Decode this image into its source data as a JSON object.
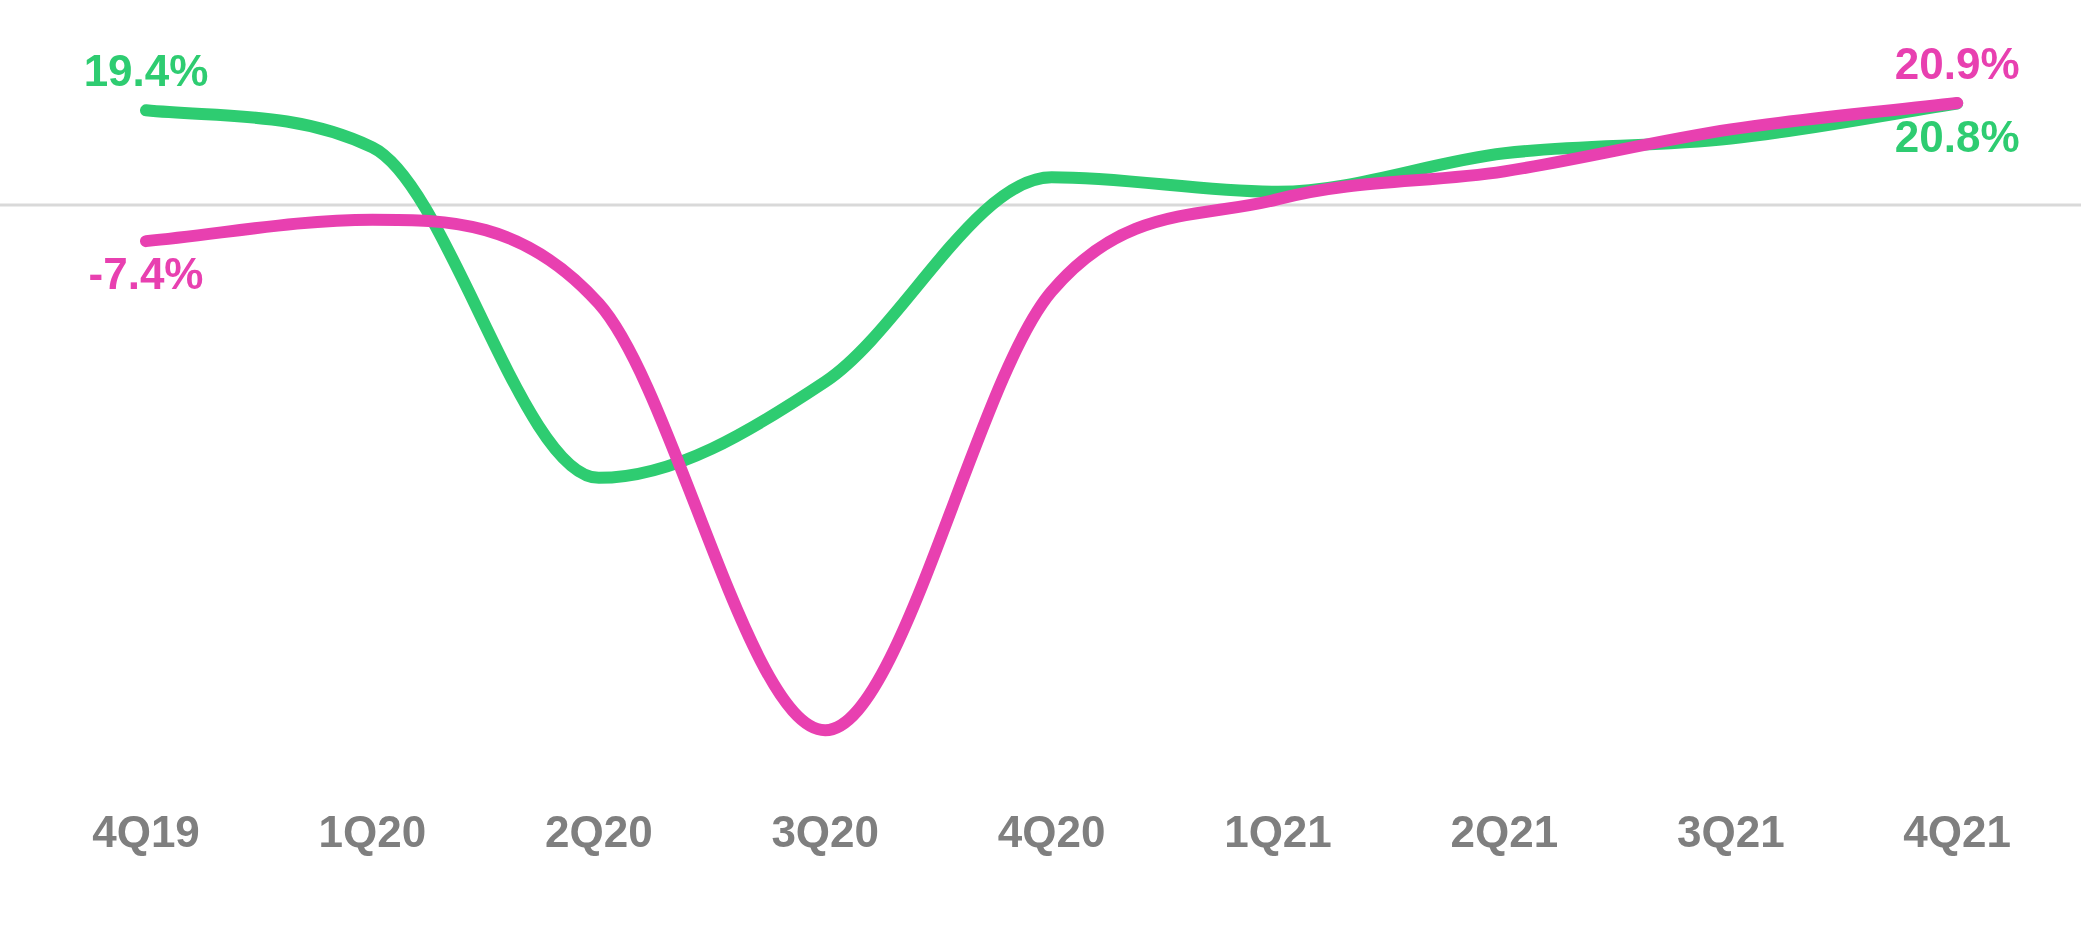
{
  "chart_data": {
    "type": "line",
    "tick_labels": "x",
    "categories": [
      "4Q19",
      "1Q20",
      "2Q20",
      "3Q20",
      "4Q20",
      "1Q21",
      "2Q21",
      "3Q21",
      "4Q21"
    ],
    "ref_lines": [
      {
        "axis": "y",
        "value": 0,
        "color": "#d9d9d9"
      }
    ],
    "series": [
      {
        "color": "#e840b0",
        "values": [
          -7.4,
          -3.0,
          -20.2,
          -107.6,
          -17.7,
          1.2,
          6.9,
          15.5,
          20.9
        ],
        "value_labels": [
          "-7.4%",
          null,
          null,
          null,
          null,
          null,
          null,
          null,
          "20.9%"
        ]
      },
      {
        "color": "#2ecc71",
        "values": [
          19.4,
          11.8,
          -55.9,
          -36.2,
          5.7,
          2.7,
          10.6,
          13.6,
          20.8
        ],
        "value_labels": [
          "19.4%",
          null,
          null,
          null,
          null,
          null,
          null,
          null,
          "20.8%"
        ]
      }
    ]
  }
}
